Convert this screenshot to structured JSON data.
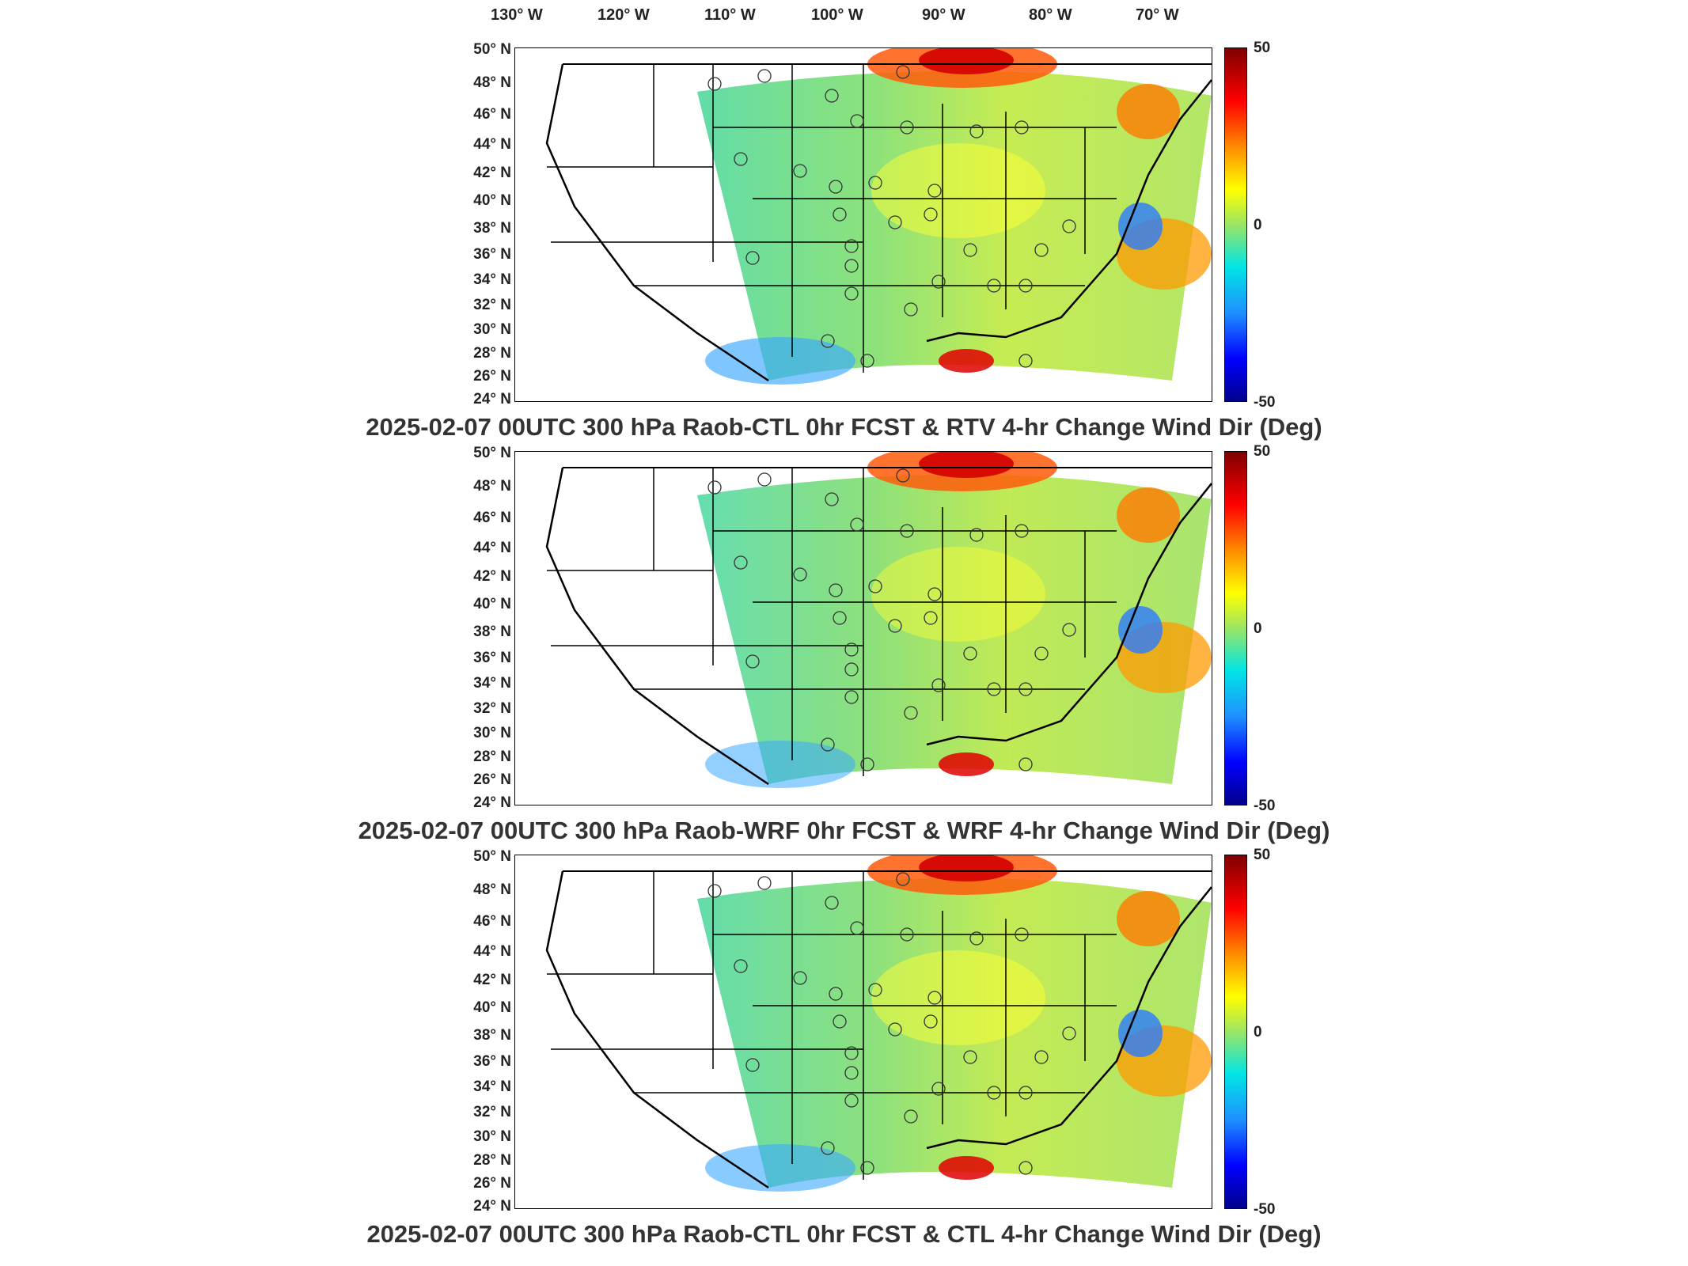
{
  "lon_labels": [
    "130° W",
    "120° W",
    "110° W",
    "100° W",
    "90° W",
    "80° W",
    "70° W"
  ],
  "lat_labels": [
    "50° N",
    "48° N",
    "46° N",
    "44° N",
    "42° N",
    "40° N",
    "38° N",
    "36° N",
    "34° N",
    "32° N",
    "30° N",
    "28° N",
    "26° N",
    "24° N"
  ],
  "colorbar": {
    "max": "50",
    "mid": "0",
    "min": "-50",
    "colors": [
      "#7f0000",
      "#ff0000",
      "#ff8c00",
      "#ffff00",
      "#9be564",
      "#00e5e5",
      "#1e90ff",
      "#0000ff",
      "#00008b"
    ]
  },
  "panels": [
    {
      "title": "2025-02-07 00UTC 300 hPa Raob-CTL 0hr FCST & RTV 4-hr Change Wind Dir (Deg)"
    },
    {
      "title": "2025-02-07 00UTC 300 hPa Raob-WRF 0hr FCST & WRF 4-hr Change Wind Dir (Deg)"
    },
    {
      "title": "2025-02-07 00UTC 300 hPa Raob-CTL 0hr FCST & CTL 4-hr Change Wind Dir (Deg)"
    }
  ]
}
